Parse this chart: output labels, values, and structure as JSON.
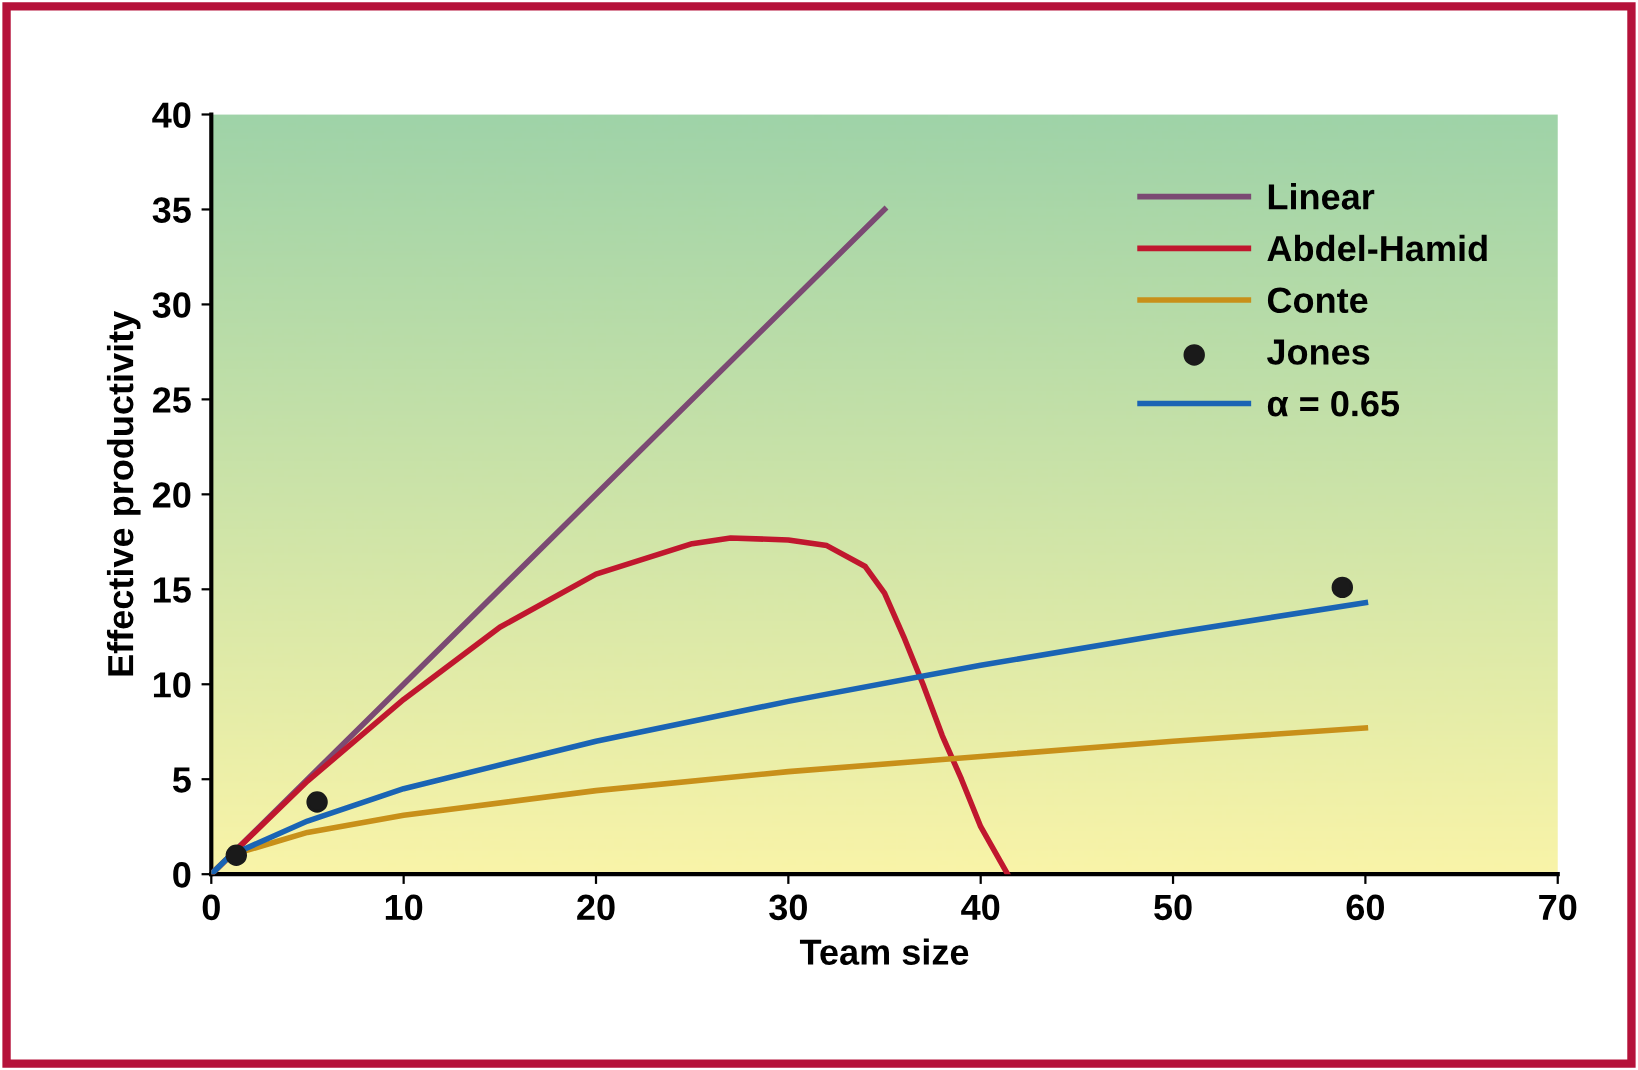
{
  "chart_data": {
    "type": "line",
    "xlabel": "Team size",
    "ylabel": "Effective productivity",
    "xlim": [
      0,
      70
    ],
    "ylim": [
      0,
      40
    ],
    "xticks": [
      0,
      10,
      20,
      30,
      40,
      50,
      60,
      70
    ],
    "yticks": [
      0,
      5,
      10,
      15,
      20,
      25,
      30,
      35,
      40
    ],
    "grid": false,
    "legend": "top right",
    "series": [
      {
        "name": "Linear",
        "color": "#7b4a73",
        "x": [
          0,
          35
        ],
        "values": [
          0,
          35
        ]
      },
      {
        "name": "Abdel-Hamid",
        "color": "#c0172e",
        "x": [
          0,
          5,
          10,
          15,
          20,
          25,
          27,
          30,
          32,
          34,
          35,
          36,
          37,
          38,
          39,
          40,
          41.4
        ],
        "values": [
          0,
          4.9,
          9.2,
          13,
          15.8,
          17.4,
          17.7,
          17.6,
          17.3,
          16.2,
          14.8,
          12.5,
          10,
          7.3,
          5,
          2.5,
          0
        ]
      },
      {
        "name": "Conte",
        "color": "#c8901a",
        "x": [
          0,
          1,
          5,
          10,
          20,
          30,
          40,
          50,
          60
        ],
        "values": [
          0,
          1,
          2.2,
          3.1,
          4.4,
          5.4,
          6.2,
          7,
          7.7
        ]
      },
      {
        "name": "Jones",
        "type": "scatter",
        "marker": "circle",
        "color": "#1a1a1a",
        "x": [
          1.3,
          5.5,
          58.8
        ],
        "values": [
          1,
          3.8,
          15.1
        ]
      },
      {
        "name": "α = 0.65",
        "color": "#1a64b4",
        "x": [
          0,
          1,
          5,
          10,
          20,
          30,
          40,
          50,
          60
        ],
        "values": [
          0,
          1,
          2.8,
          4.5,
          7,
          9.1,
          11,
          12.7,
          14.3
        ]
      }
    ]
  }
}
